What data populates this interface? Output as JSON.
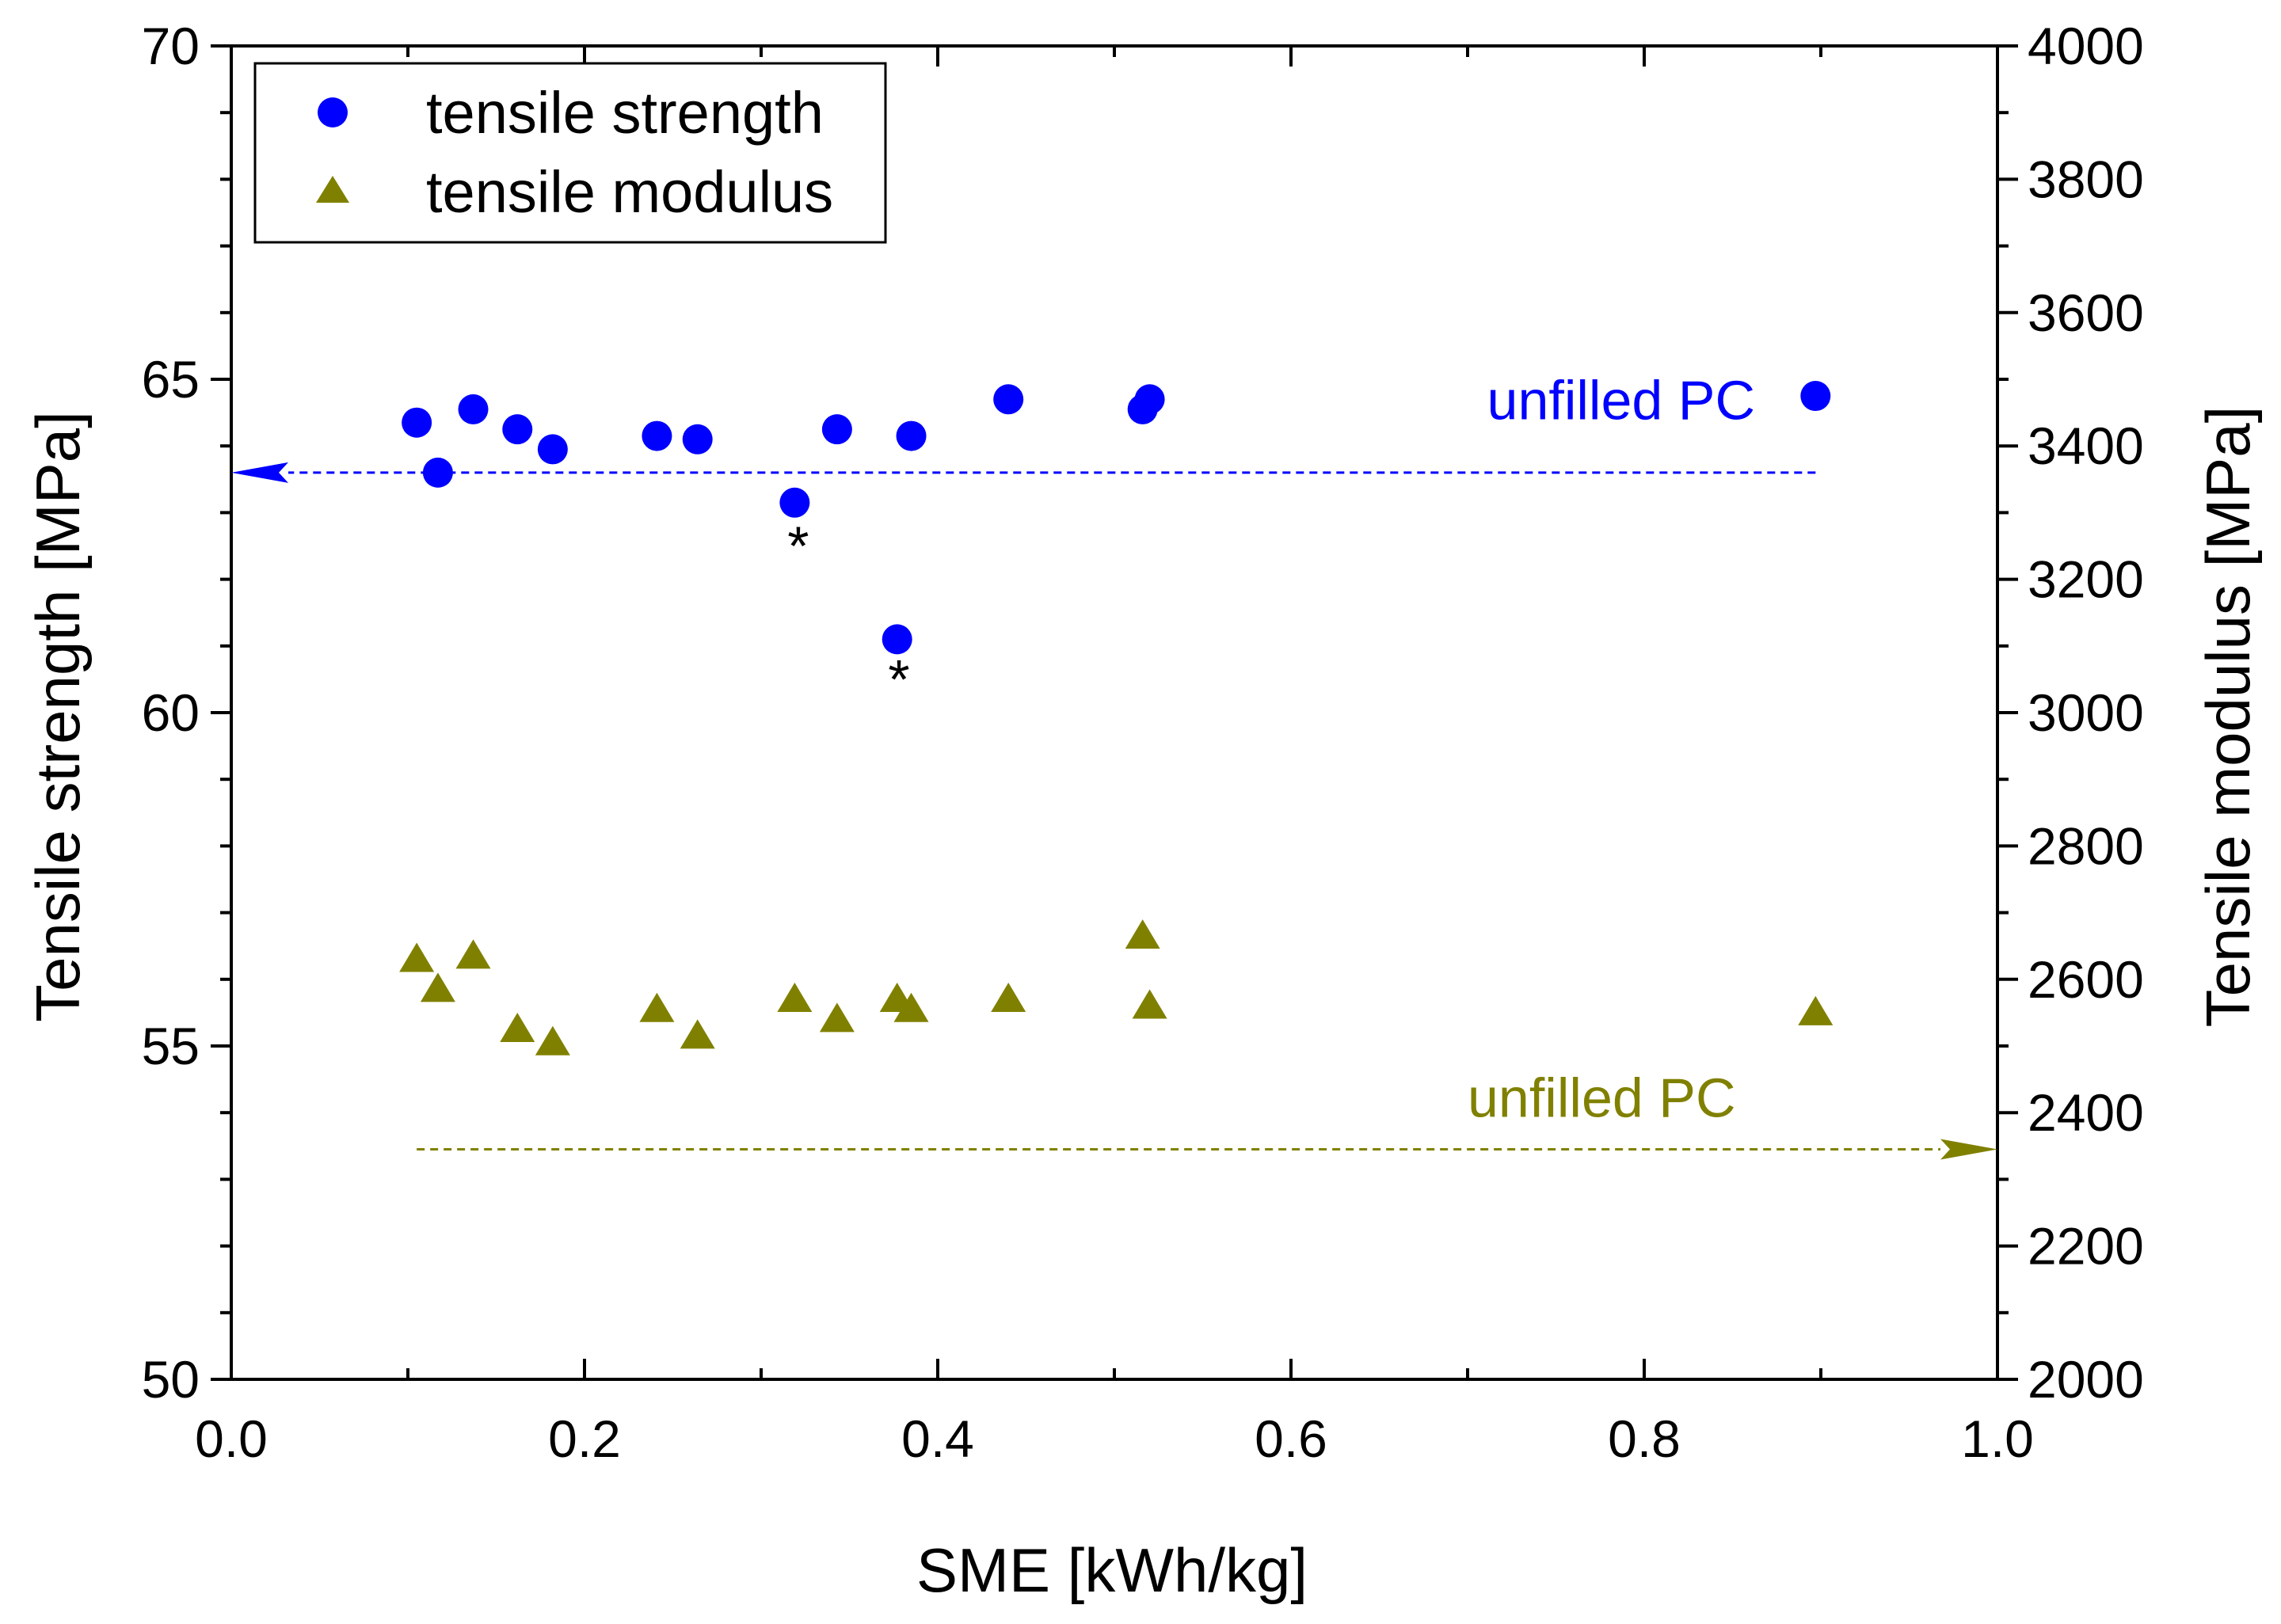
{
  "chart_data": {
    "type": "scatter",
    "title": "",
    "xlabel": "SME [kWh/kg]",
    "ylabel_left": "Tensile strength [MPa]",
    "ylabel_right": "Tensile modulus [MPa]",
    "xlim": [
      0.0,
      1.0
    ],
    "ylim_left": [
      50,
      70
    ],
    "ylim_right": [
      2000,
      4000
    ],
    "x_ticks": [
      "0.0",
      "0.2",
      "0.4",
      "0.6",
      "0.8",
      "1.0"
    ],
    "x_tick_values": [
      0.0,
      0.2,
      0.4,
      0.6,
      0.8,
      1.0
    ],
    "y_left_ticks": [
      "50",
      "55",
      "60",
      "65",
      "70"
    ],
    "y_left_tick_values": [
      50,
      55,
      60,
      65,
      70
    ],
    "y_right_ticks": [
      "2000",
      "2200",
      "2400",
      "2600",
      "2800",
      "3000",
      "3200",
      "3400",
      "3600",
      "3800",
      "4000"
    ],
    "y_right_tick_values": [
      2000,
      2200,
      2400,
      2600,
      2800,
      3000,
      3200,
      3400,
      3600,
      3800,
      4000
    ],
    "grid": false,
    "legend_position": "top-left",
    "series": [
      {
        "name": "tensile strength",
        "axis": "left",
        "marker": "circle",
        "color": "#0000ff",
        "x": [
          0.105,
          0.117,
          0.137,
          0.162,
          0.182,
          0.241,
          0.264,
          0.319,
          0.343,
          0.377,
          0.385,
          0.44,
          0.516,
          0.52,
          0.897
        ],
        "y": [
          64.35,
          63.6,
          64.55,
          64.25,
          63.95,
          64.15,
          64.1,
          63.15,
          64.25,
          61.1,
          64.15,
          64.7,
          64.55,
          64.7,
          64.75
        ]
      },
      {
        "name": "tensile modulus",
        "axis": "right",
        "marker": "triangle",
        "color": "#808000",
        "x": [
          0.105,
          0.117,
          0.137,
          0.162,
          0.182,
          0.241,
          0.264,
          0.319,
          0.343,
          0.377,
          0.385,
          0.44,
          0.516,
          0.52,
          0.897
        ],
        "y": [
          2630,
          2585,
          2635,
          2525,
          2505,
          2555,
          2515,
          2570,
          2540,
          2570,
          2555,
          2570,
          2665,
          2560,
          2550
        ]
      }
    ],
    "reference_lines": [
      {
        "label": "unfilled PC",
        "axis": "left",
        "y": 63.6,
        "x_from": 0.897,
        "x_to": 0.0,
        "color": "#0000ff",
        "label_x": 0.711,
        "label_y": 64.4
      },
      {
        "label": "unfilled PC",
        "axis": "right",
        "y": 2345,
        "x_from": 0.105,
        "x_to": 1.0,
        "color": "#808000",
        "label_x": 0.7,
        "label_y": 2394
      }
    ],
    "annotations": [
      {
        "text": "*",
        "axis": "left",
        "x": 0.321,
        "y": 62.45,
        "color": "#000000"
      },
      {
        "text": "*",
        "axis": "left",
        "x": 0.378,
        "y": 60.45,
        "color": "#000000"
      }
    ]
  }
}
